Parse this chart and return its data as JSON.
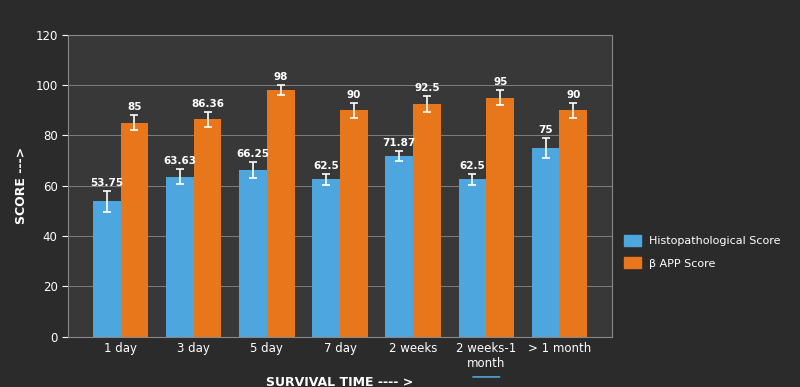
{
  "categories": [
    "1 day",
    "3 day",
    "5 day",
    "7 day",
    "2 weeks",
    "2 weeks-1\nmonth",
    "> 1 month"
  ],
  "histo_values": [
    53.75,
    63.63,
    66.25,
    62.5,
    71.87,
    62.5,
    75
  ],
  "bapp_values": [
    85,
    86.36,
    98,
    90,
    92.5,
    95,
    90
  ],
  "histo_errors": [
    4,
    3,
    3,
    2,
    2,
    2,
    4
  ],
  "bapp_errors": [
    3,
    3,
    2,
    3,
    3,
    3,
    3
  ],
  "histo_color": "#4da6dd",
  "bapp_color": "#e8761a",
  "background_color": "#2b2b2b",
  "plot_bg_color": "#383838",
  "grid_color": "#888888",
  "text_color": "#ffffff",
  "ylabel": "SCORE --->",
  "xlabel": "SURVIVAL TIME ---- >",
  "ylim": [
    0,
    120
  ],
  "yticks": [
    0,
    20,
    40,
    60,
    80,
    100,
    120
  ],
  "legend_histo": "Histopathological Score",
  "legend_bapp": "β APP Score",
  "bar_width": 0.38,
  "label_fontsize": 7.5,
  "axis_label_fontsize": 9,
  "tick_fontsize": 8.5
}
